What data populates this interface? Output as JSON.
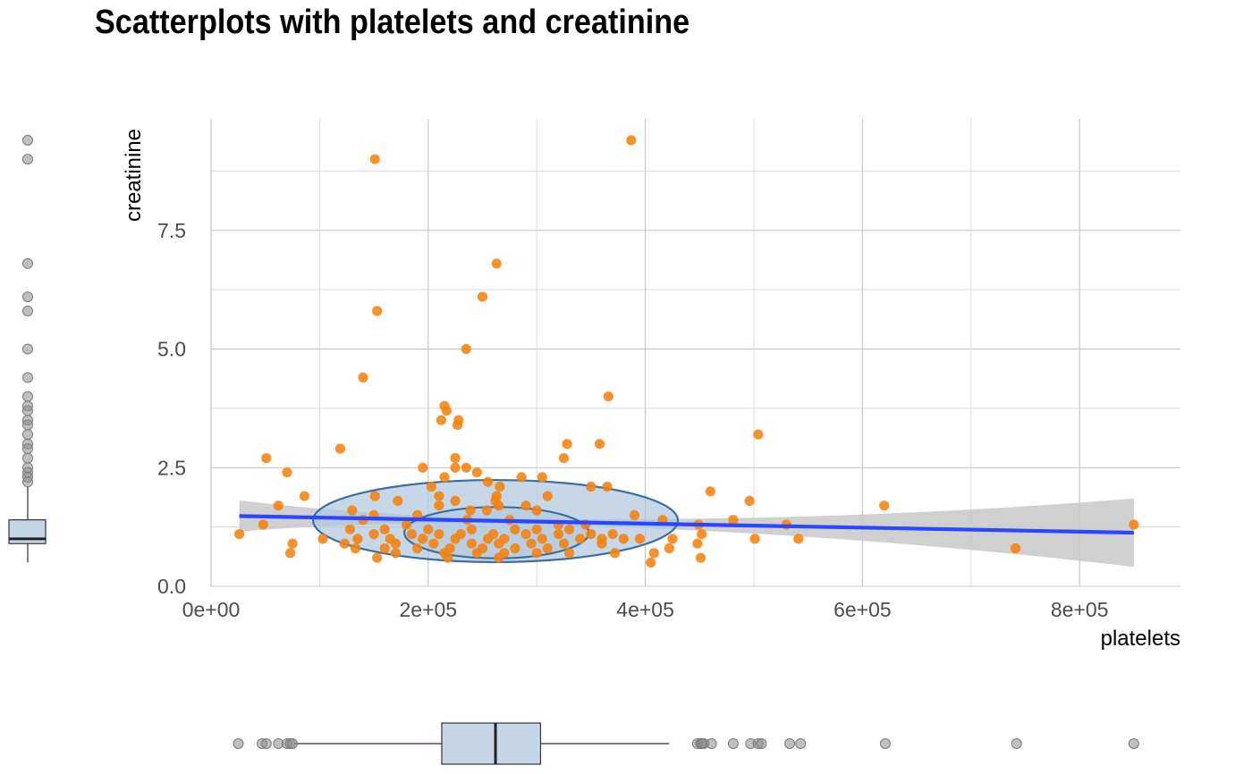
{
  "chart_data": {
    "type": "scatter",
    "title": "Scatterplots with platelets and creatinine",
    "xlabel": "platelets",
    "ylabel": "creatinine",
    "xlim": [
      0,
      890000
    ],
    "ylim": [
      0,
      9.6
    ],
    "x_ticks": [
      {
        "value": 0,
        "label": "0e+00"
      },
      {
        "value": 200000,
        "label": "2e+05"
      },
      {
        "value": 400000,
        "label": "4e+05"
      },
      {
        "value": 600000,
        "label": "6e+05"
      },
      {
        "value": 800000,
        "label": "8e+05"
      }
    ],
    "y_ticks": [
      {
        "value": 0,
        "label": "0.0"
      },
      {
        "value": 2.5,
        "label": "2.5"
      },
      {
        "value": 5,
        "label": "5.0"
      },
      {
        "value": 7.5,
        "label": "7.5"
      }
    ],
    "grid": true,
    "colors": {
      "points": "#f5820f",
      "regression": "#2a46ff",
      "band": "#c8c8c8",
      "ellipse_fill": "#aec6dd",
      "ellipse_stroke": "#3d6ea2",
      "box_fill": "#c6d6e6"
    },
    "points": [
      [
        387000,
        9.4
      ],
      [
        151000,
        9.0
      ],
      [
        263000,
        6.8
      ],
      [
        250000,
        6.1
      ],
      [
        153000,
        5.8
      ],
      [
        235000,
        5.0
      ],
      [
        140000,
        4.4
      ],
      [
        366000,
        4.0
      ],
      [
        215000,
        3.8
      ],
      [
        217000,
        3.7
      ],
      [
        228000,
        3.5
      ],
      [
        227000,
        3.4
      ],
      [
        212000,
        3.5
      ],
      [
        504000,
        3.2
      ],
      [
        328000,
        3.0
      ],
      [
        358000,
        3.0
      ],
      [
        119000,
        2.9
      ],
      [
        225000,
        2.7
      ],
      [
        325000,
        2.7
      ],
      [
        51000,
        2.7
      ],
      [
        195000,
        2.5
      ],
      [
        225000,
        2.5
      ],
      [
        235000,
        2.5
      ],
      [
        70000,
        2.4
      ],
      [
        245000,
        2.4
      ],
      [
        266000,
        2.1
      ],
      [
        305000,
        2.3
      ],
      [
        286000,
        2.3
      ],
      [
        215000,
        2.3
      ],
      [
        255000,
        2.2
      ],
      [
        350000,
        2.1
      ],
      [
        365000,
        2.1
      ],
      [
        203000,
        2.1
      ],
      [
        460000,
        2.0
      ],
      [
        86000,
        1.9
      ],
      [
        151000,
        1.9
      ],
      [
        210000,
        1.9
      ],
      [
        263000,
        1.9
      ],
      [
        310000,
        1.9
      ],
      [
        496000,
        1.8
      ],
      [
        172000,
        1.8
      ],
      [
        225000,
        1.8
      ],
      [
        262000,
        1.8
      ],
      [
        290000,
        1.7
      ],
      [
        620000,
        1.7
      ],
      [
        62000,
        1.7
      ],
      [
        265000,
        1.7
      ],
      [
        210000,
        1.7
      ],
      [
        130000,
        1.6
      ],
      [
        239000,
        1.6
      ],
      [
        300000,
        1.6
      ],
      [
        254000,
        1.6
      ],
      [
        390000,
        1.5
      ],
      [
        190000,
        1.5
      ],
      [
        150000,
        1.5
      ],
      [
        275000,
        1.4
      ],
      [
        140000,
        1.4
      ],
      [
        481000,
        1.4
      ],
      [
        236000,
        1.4
      ],
      [
        416000,
        1.4
      ],
      [
        48000,
        1.3
      ],
      [
        180000,
        1.3
      ],
      [
        345000,
        1.3
      ],
      [
        530000,
        1.3
      ],
      [
        449000,
        1.3
      ],
      [
        850000,
        1.3
      ],
      [
        320000,
        1.3
      ],
      [
        160000,
        1.2
      ],
      [
        128000,
        1.2
      ],
      [
        200000,
        1.2
      ],
      [
        240000,
        1.2
      ],
      [
        280000,
        1.2
      ],
      [
        300000,
        1.2
      ],
      [
        330000,
        1.2
      ],
      [
        350000,
        1.1
      ],
      [
        370000,
        1.1
      ],
      [
        452000,
        1.1
      ],
      [
        26000,
        1.1
      ],
      [
        150000,
        1.1
      ],
      [
        185000,
        1.1
      ],
      [
        210000,
        1.1
      ],
      [
        230000,
        1.1
      ],
      [
        260000,
        1.1
      ],
      [
        290000,
        1.1
      ],
      [
        320000,
        1.1
      ],
      [
        135000,
        1.0
      ],
      [
        103000,
        1.0
      ],
      [
        165000,
        1.0
      ],
      [
        195000,
        1.0
      ],
      [
        225000,
        1.0
      ],
      [
        255000,
        1.0
      ],
      [
        270000,
        1.0
      ],
      [
        305000,
        1.0
      ],
      [
        340000,
        1.0
      ],
      [
        360000,
        1.0
      ],
      [
        380000,
        1.0
      ],
      [
        395000,
        1.0
      ],
      [
        425000,
        1.0
      ],
      [
        501000,
        1.0
      ],
      [
        541000,
        1.0
      ],
      [
        75000,
        0.9
      ],
      [
        123000,
        0.9
      ],
      [
        170000,
        0.9
      ],
      [
        205000,
        0.9
      ],
      [
        240000,
        0.9
      ],
      [
        265000,
        0.9
      ],
      [
        295000,
        0.9
      ],
      [
        325000,
        0.9
      ],
      [
        360000,
        0.9
      ],
      [
        448000,
        0.9
      ],
      [
        133000,
        0.8
      ],
      [
        160000,
        0.8
      ],
      [
        190000,
        0.8
      ],
      [
        220000,
        0.8
      ],
      [
        250000,
        0.8
      ],
      [
        280000,
        0.8
      ],
      [
        310000,
        0.8
      ],
      [
        422000,
        0.8
      ],
      [
        741000,
        0.8
      ],
      [
        73000,
        0.7
      ],
      [
        170000,
        0.7
      ],
      [
        215000,
        0.7
      ],
      [
        245000,
        0.7
      ],
      [
        270000,
        0.7
      ],
      [
        300000,
        0.7
      ],
      [
        330000,
        0.7
      ],
      [
        372000,
        0.7
      ],
      [
        408000,
        0.7
      ],
      [
        153000,
        0.6
      ],
      [
        218000,
        0.6
      ],
      [
        265000,
        0.6
      ],
      [
        451000,
        0.6
      ],
      [
        405000,
        0.5
      ]
    ],
    "regression": {
      "x0": 26000,
      "y0": 1.48,
      "x1": 850000,
      "y1": 1.13,
      "band_halfwidth_at_ends": [
        0.33,
        0.72
      ],
      "band_halfwidth_min": 0.06,
      "band_center_x": 263000
    },
    "ellipses": [
      {
        "level": "outer",
        "cx": 262000,
        "cy": 1.39,
        "rx": 168000,
        "ry_top": 0.85,
        "ry_bottom": 0.88
      },
      {
        "level": "inner",
        "cx": 263000,
        "cy": 1.13,
        "rx": 85000,
        "ry": 0.54
      }
    ],
    "marginal_y": {
      "box": {
        "q1": 0.9,
        "median": 1.0,
        "q3": 1.4,
        "whisker_low": 0.5,
        "whisker_high": 2.1
      },
      "outliers": [
        9.4,
        9.0,
        6.8,
        6.1,
        5.8,
        5.0,
        4.4,
        4.0,
        3.8,
        3.7,
        3.5,
        3.4,
        3.2,
        3.0,
        2.9,
        2.7,
        2.5,
        2.4,
        2.3,
        2.2
      ]
    },
    "marginal_x": {
      "box": {
        "q1": 212500,
        "median": 262000,
        "q3": 303500,
        "whisker_low": 76000,
        "whisker_high": 422000
      },
      "outliers": [
        25100,
        47000,
        51000,
        62000,
        70000,
        73000,
        75000,
        448000,
        451000,
        452000,
        454000,
        461000,
        481000,
        497000,
        504000,
        507000,
        533000,
        543000,
        621000,
        742000,
        850000
      ]
    }
  }
}
